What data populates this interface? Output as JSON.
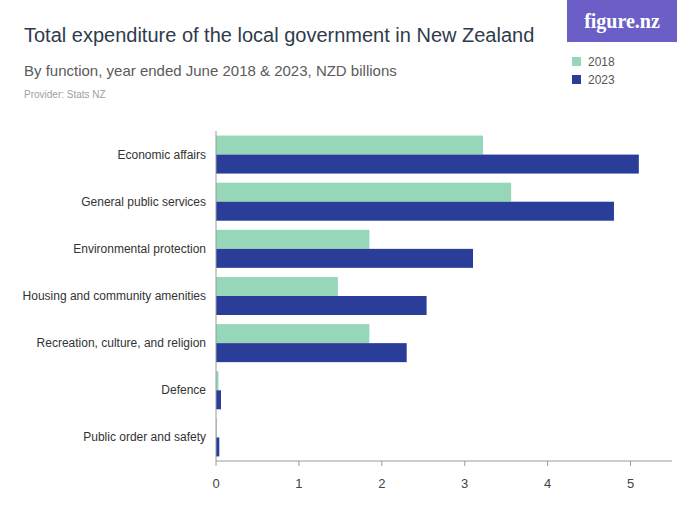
{
  "chart_data": {
    "type": "bar",
    "orientation": "horizontal",
    "title": "Total expenditure of the local government in New Zealand",
    "subtitle": "By function, year ended June 2018 & 2023, NZD billions",
    "annotations": [
      "Provider: Stats NZ",
      "figure.nz"
    ],
    "categories": [
      "Economic affairs",
      "General public services",
      "Environmental protection",
      "Housing and community amenities",
      "Recreation, culture, and religion",
      "Defence",
      "Public order and safety"
    ],
    "series": [
      {
        "name": "2018",
        "color": "#97d7b9",
        "values": [
          3.22,
          3.56,
          1.85,
          1.47,
          1.85,
          0.03,
          0.01
        ]
      },
      {
        "name": "2023",
        "color": "#2a3d99",
        "values": [
          5.1,
          4.8,
          3.1,
          2.54,
          2.3,
          0.06,
          0.04
        ]
      }
    ],
    "xlim": [
      0,
      5.5
    ],
    "xticks": [
      0,
      1,
      2,
      3,
      4,
      5
    ],
    "grid": false,
    "legend": "top-right"
  }
}
